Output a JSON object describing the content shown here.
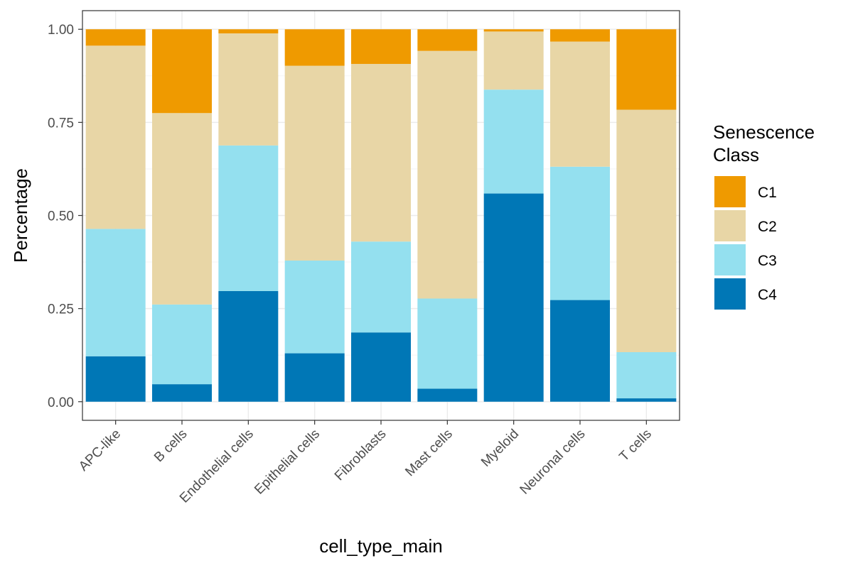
{
  "chart_data": {
    "type": "bar",
    "stacked": true,
    "xlabel": "cell_type_main",
    "ylabel": "Percentage",
    "ylim": [
      -0.05,
      1.05
    ],
    "yticks": [
      0.0,
      0.25,
      0.5,
      0.75,
      1.0
    ],
    "ytick_labels": [
      "0.00",
      "0.25",
      "0.50",
      "0.75",
      "1.00"
    ],
    "categories": [
      "APC-like",
      "B cells",
      "Endothelial cells",
      "Epithelial cells",
      "Fibroblasts",
      "Mast cells",
      "Myeloid",
      "Neuronal cells",
      "T cells"
    ],
    "stack_order_bottom_to_top": [
      "C4",
      "C3",
      "C2",
      "C1"
    ],
    "series": [
      {
        "name": "C1",
        "color": "#EF9A00",
        "values": [
          0.044,
          0.225,
          0.011,
          0.098,
          0.093,
          0.058,
          0.006,
          0.033,
          0.216
        ]
      },
      {
        "name": "C2",
        "color": "#E8D6A6",
        "values": [
          0.492,
          0.514,
          0.301,
          0.523,
          0.477,
          0.665,
          0.156,
          0.336,
          0.651
        ]
      },
      {
        "name": "C3",
        "color": "#94E0EF",
        "values": [
          0.342,
          0.214,
          0.391,
          0.249,
          0.244,
          0.242,
          0.279,
          0.358,
          0.124
        ]
      },
      {
        "name": "C4",
        "color": "#0077B6",
        "values": [
          0.122,
          0.047,
          0.297,
          0.13,
          0.186,
          0.035,
          0.559,
          0.273,
          0.009
        ]
      }
    ],
    "legend": {
      "title_lines": [
        "Senescence",
        "Class"
      ],
      "placement": "right",
      "entries": [
        "C1",
        "C2",
        "C3",
        "C4"
      ]
    },
    "grid": true,
    "theme": "bw"
  }
}
